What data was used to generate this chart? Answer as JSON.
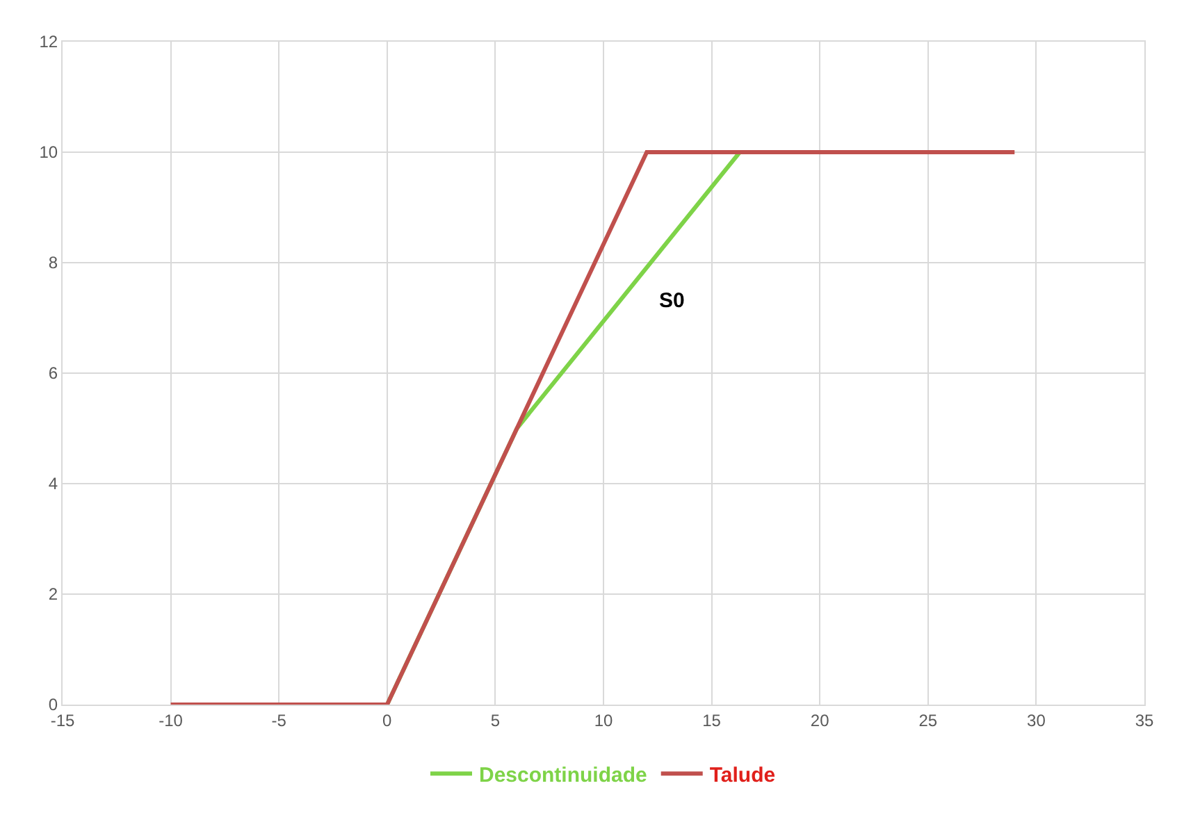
{
  "chart_data": {
    "type": "line",
    "series": [
      {
        "name": "Descontinuidade",
        "color": "#7ed348",
        "x": [
          0,
          6,
          16.3
        ],
        "values": [
          0,
          5,
          10
        ]
      },
      {
        "name": "Talude",
        "color": "#c0504d",
        "x": [
          -10,
          0,
          12,
          29
        ],
        "values": [
          0,
          0,
          10,
          10
        ]
      }
    ],
    "xlim": [
      -15,
      35
    ],
    "xticks": [
      -15,
      -10,
      -5,
      0,
      5,
      10,
      15,
      20,
      25,
      30,
      35
    ],
    "ylim": [
      0,
      12
    ],
    "yticks": [
      0,
      2,
      4,
      6,
      8,
      10,
      12
    ],
    "grid": true,
    "legend": "bottom",
    "marker": "none",
    "line_style": "solid",
    "annotations": [
      "S0"
    ]
  }
}
